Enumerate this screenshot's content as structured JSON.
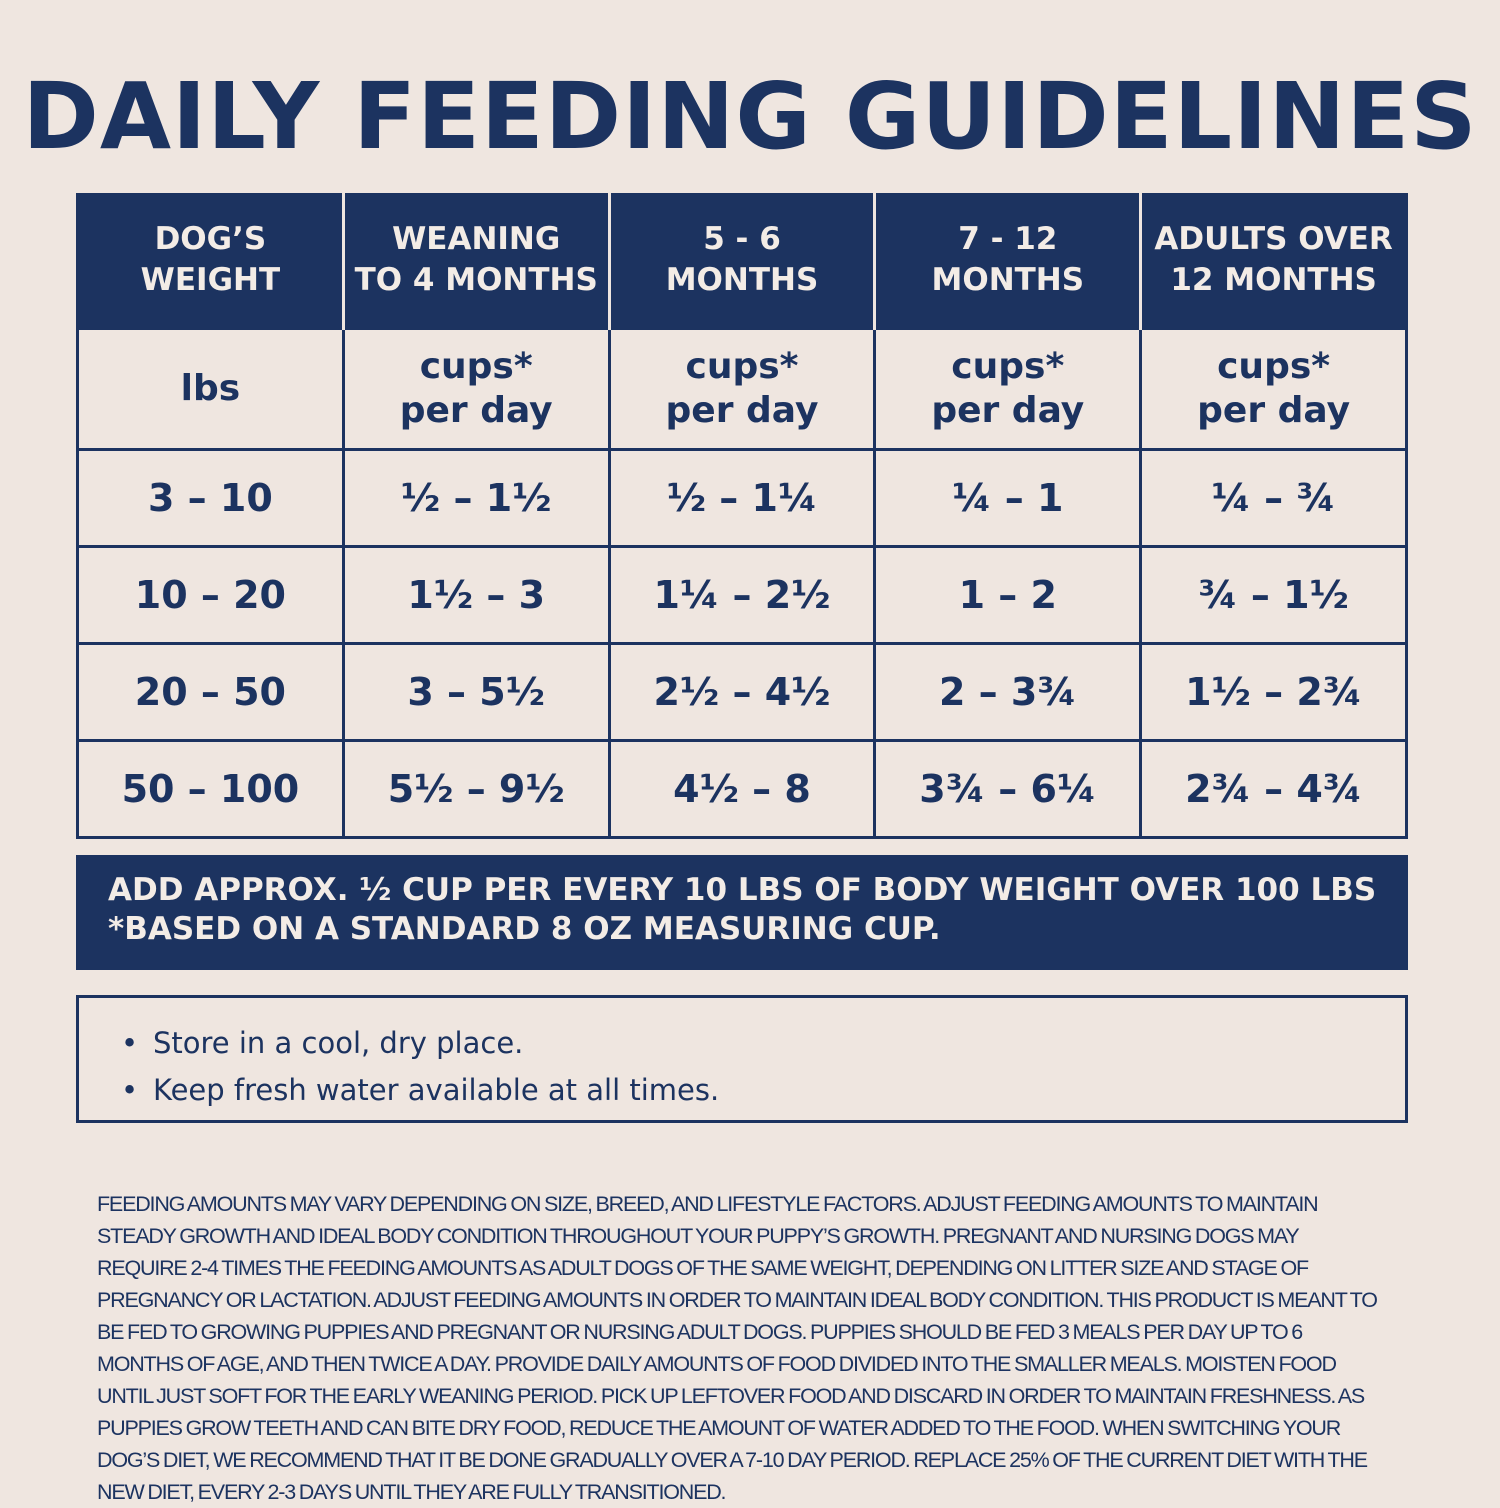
{
  "title": "DAILY FEEDING GUIDELINES",
  "table": {
    "header": [
      [
        "DOG’S",
        "WEIGHT"
      ],
      [
        "WEANING",
        "TO 4 MONTHS"
      ],
      [
        "5 - 6",
        "MONTHS"
      ],
      [
        "7 - 12",
        "MONTHS"
      ],
      [
        "ADULTS OVER",
        "12 MONTHS"
      ]
    ],
    "units": [
      [
        "lbs"
      ],
      [
        "cups*",
        "per day"
      ],
      [
        "cups*",
        "per day"
      ],
      [
        "cups*",
        "per day"
      ],
      [
        "cups*",
        "per day"
      ]
    ],
    "rows": [
      [
        "3 – 10",
        "½ – 1½",
        "½ – 1¼",
        "¼ – 1",
        "¼ – ¾"
      ],
      [
        "10 – 20",
        "1½ – 3",
        "1¼ – 2½",
        "1 – 2",
        "¾ – 1½"
      ],
      [
        "20 – 50",
        "3 – 5½",
        "2½ – 4½",
        "2 – 3¾",
        "1½ – 2¾"
      ],
      [
        "50 – 100",
        "5½ – 9½",
        "4½ – 8",
        "3¾ – 6¼",
        "2¾ – 4¾"
      ]
    ],
    "footer": [
      "ADD APPROX. ½ CUP PER EVERY 10 LBS OF BODY WEIGHT OVER 100 LBS",
      "*BASED ON A STANDARD 8 OZ MEASURING CUP."
    ]
  },
  "bullets": [
    "Store in a cool, dry place.",
    "Keep fresh water available at all times."
  ],
  "disclaimer": "FEEDING AMOUNTS MAY VARY DEPENDING ON SIZE, BREED, AND LIFESTYLE FACTORS. ADJUST FEEDING AMOUNTS TO MAINTAIN STEADY GROWTH AND IDEAL BODY CONDITION THROUGHOUT YOUR PUPPY’S GROWTH. PREGNANT AND NURSING DOGS MAY REQUIRE 2-4 TIMES THE FEEDING AMOUNTS AS ADULT DOGS OF THE SAME WEIGHT, DEPENDING ON LITTER SIZE AND STAGE OF PREGNANCY OR LACTATION. ADJUST FEEDING AMOUNTS IN ORDER TO MAINTAIN IDEAL BODY CONDITION. THIS PRODUCT IS MEANT TO BE FED TO GROWING PUPPIES AND PREGNANT OR NURSING ADULT DOGS. PUPPIES SHOULD BE FED 3 MEALS PER DAY UP TO 6 MONTHS OF AGE, AND THEN TWICE A DAY. PROVIDE DAILY AMOUNTS OF FOOD DIVIDED INTO THE SMALLER MEALS. MOISTEN FOOD UNTIL JUST SOFT FOR THE EARLY WEANING PERIOD. PICK UP LEFTOVER FOOD AND DISCARD IN ORDER TO MAINTAIN FRESHNESS. AS PUPPIES GROW TEETH AND CAN BITE DRY FOOD, REDUCE THE AMOUNT OF WATER ADDED TO THE FOOD. WHEN SWITCHING YOUR DOG’S DIET, WE RECOMMEND THAT IT BE DONE GRADUALLY OVER A 7-10 DAY PERIOD. REPLACE 25% OF THE CURRENT DIET WITH THE NEW DIET, EVERY 2-3 DAYS UNTIL THEY ARE FULLY TRANSITIONED."
}
